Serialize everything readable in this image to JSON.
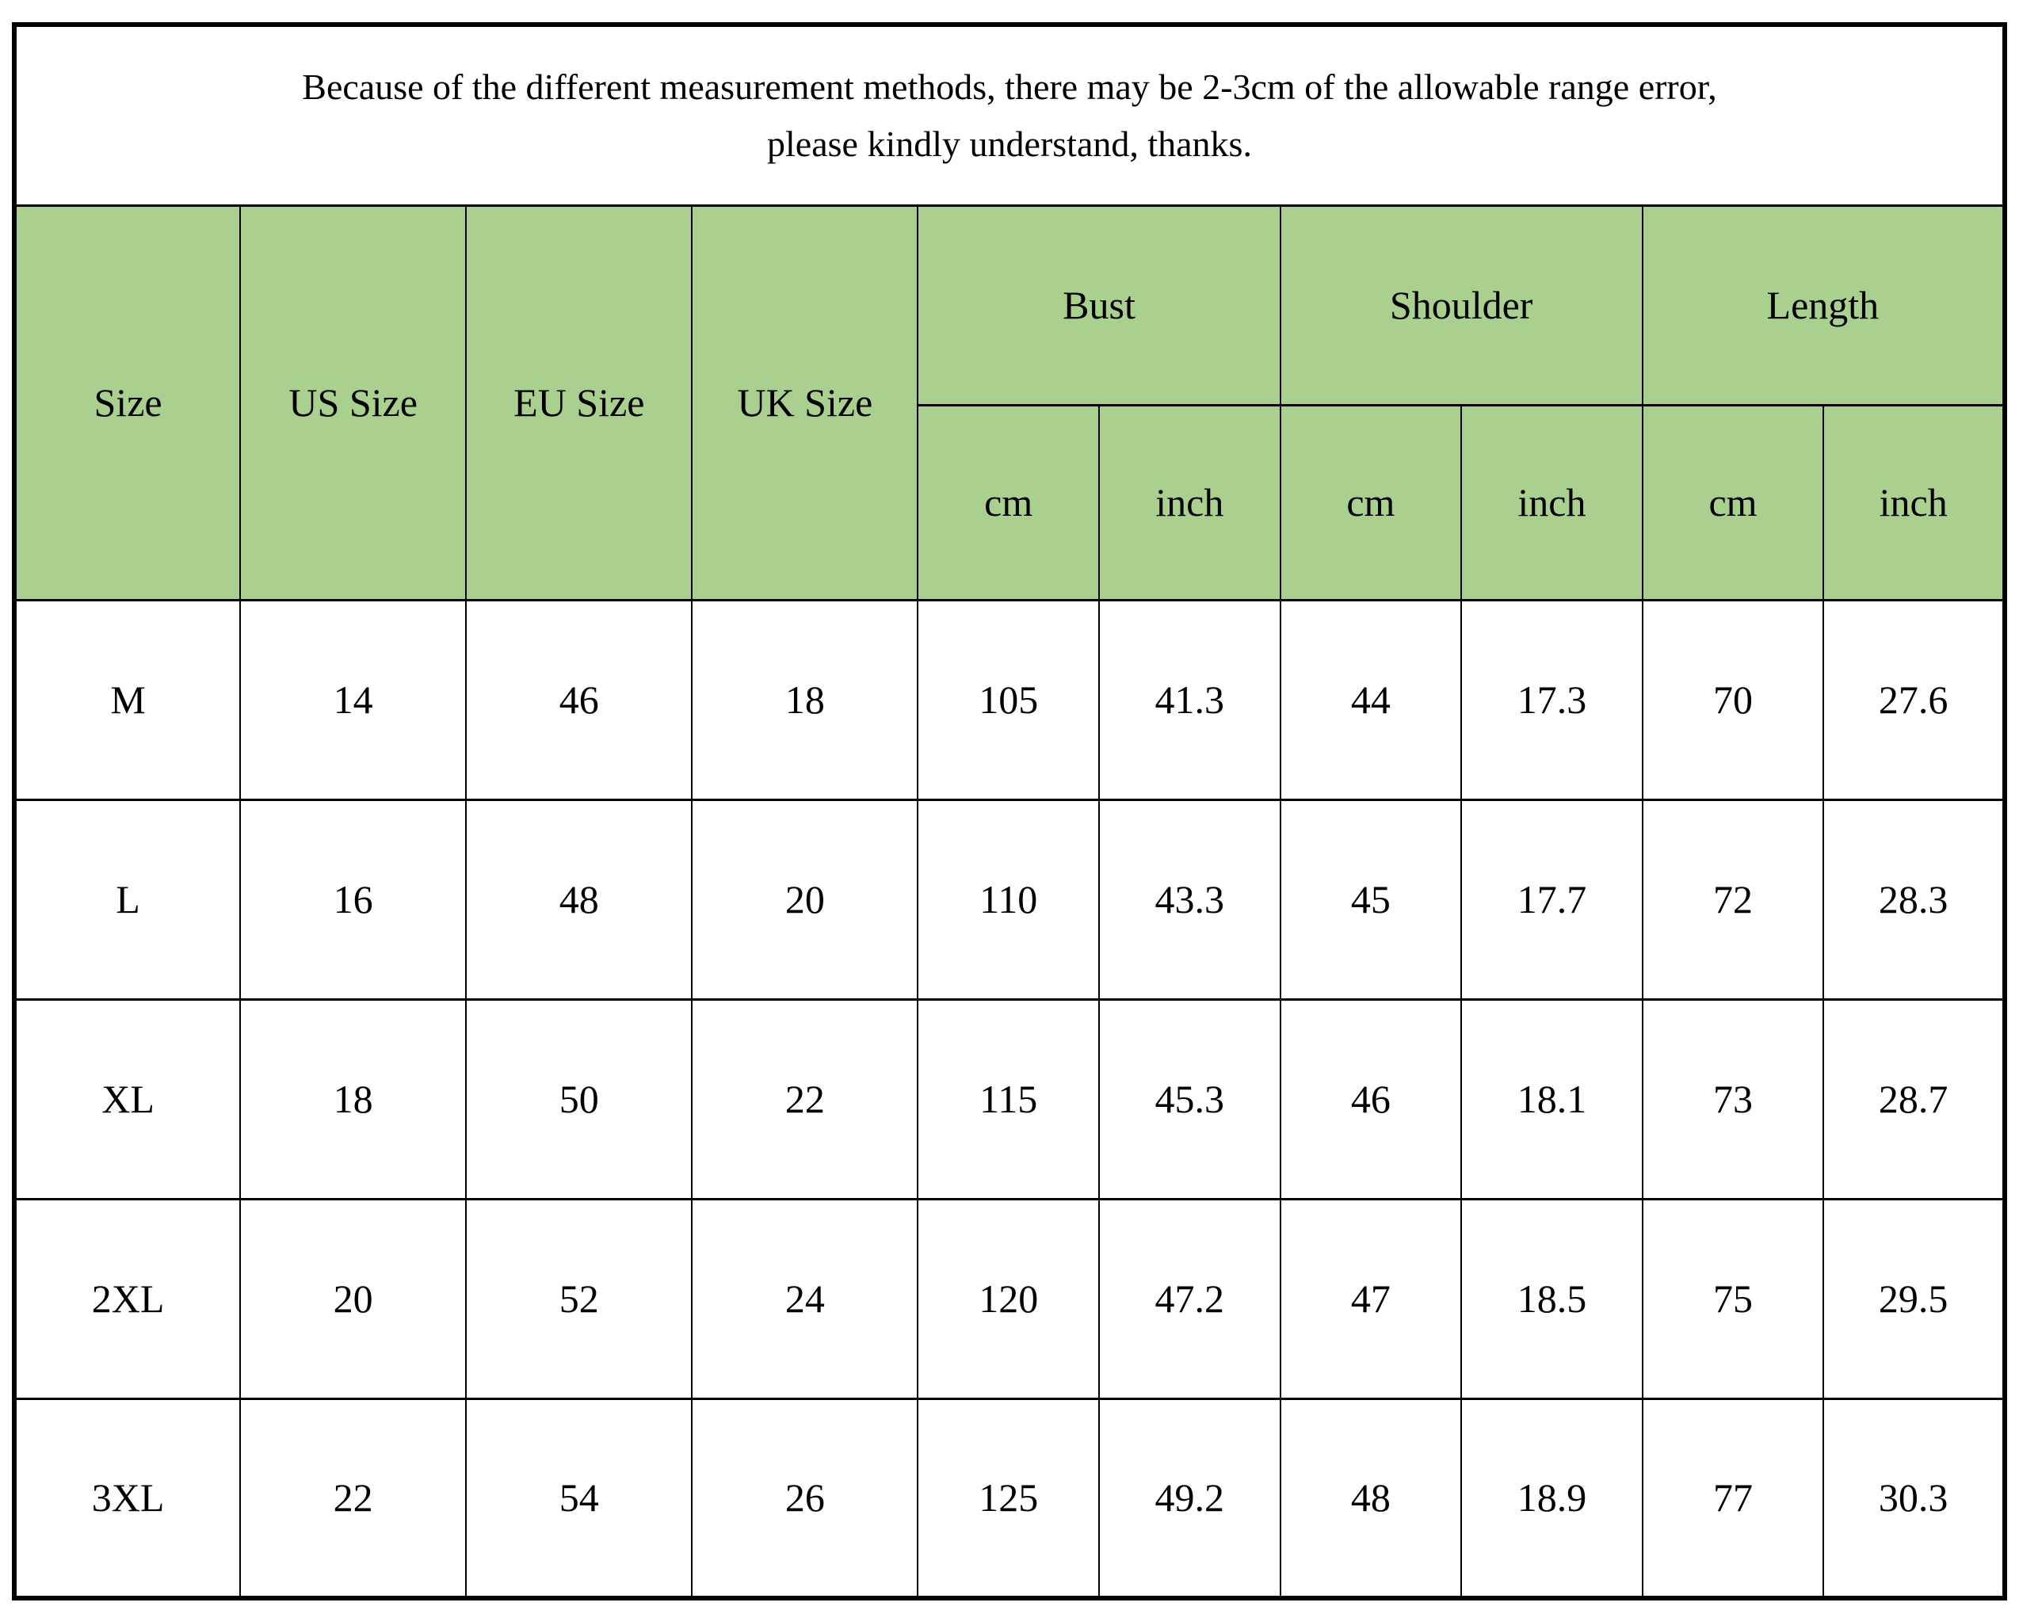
{
  "notice": {
    "line1": "Because of the different measurement methods, there may be 2-3cm of the allowable range error,",
    "line2": "please kindly understand, thanks."
  },
  "colors": {
    "header_bg": "#a9d08e",
    "border": "#000000",
    "background": "#ffffff",
    "text": "#000000"
  },
  "table": {
    "column_headers": {
      "size": "Size",
      "us": "US Size",
      "eu": "EU Size",
      "uk": "UK Size"
    },
    "measurement_groups": {
      "bust": "Bust",
      "shoulder": "Shoulder",
      "length": "Length"
    },
    "units": {
      "cm": "cm",
      "inch": "inch"
    },
    "rows": [
      {
        "size": "M",
        "us": "14",
        "eu": "46",
        "uk": "18",
        "bust_cm": "105",
        "bust_inch": "41.3",
        "shoulder_cm": "44",
        "shoulder_inch": "17.3",
        "length_cm": "70",
        "length_inch": "27.6"
      },
      {
        "size": "L",
        "us": "16",
        "eu": "48",
        "uk": "20",
        "bust_cm": "110",
        "bust_inch": "43.3",
        "shoulder_cm": "45",
        "shoulder_inch": "17.7",
        "length_cm": "72",
        "length_inch": "28.3"
      },
      {
        "size": "XL",
        "us": "18",
        "eu": "50",
        "uk": "22",
        "bust_cm": "115",
        "bust_inch": "45.3",
        "shoulder_cm": "46",
        "shoulder_inch": "18.1",
        "length_cm": "73",
        "length_inch": "28.7"
      },
      {
        "size": "2XL",
        "us": "20",
        "eu": "52",
        "uk": "24",
        "bust_cm": "120",
        "bust_inch": "47.2",
        "shoulder_cm": "47",
        "shoulder_inch": "18.5",
        "length_cm": "75",
        "length_inch": "29.5"
      },
      {
        "size": "3XL",
        "us": "22",
        "eu": "54",
        "uk": "26",
        "bust_cm": "125",
        "bust_inch": "49.2",
        "shoulder_cm": "48",
        "shoulder_inch": "18.9",
        "length_cm": "77",
        "length_inch": "30.3"
      }
    ]
  }
}
